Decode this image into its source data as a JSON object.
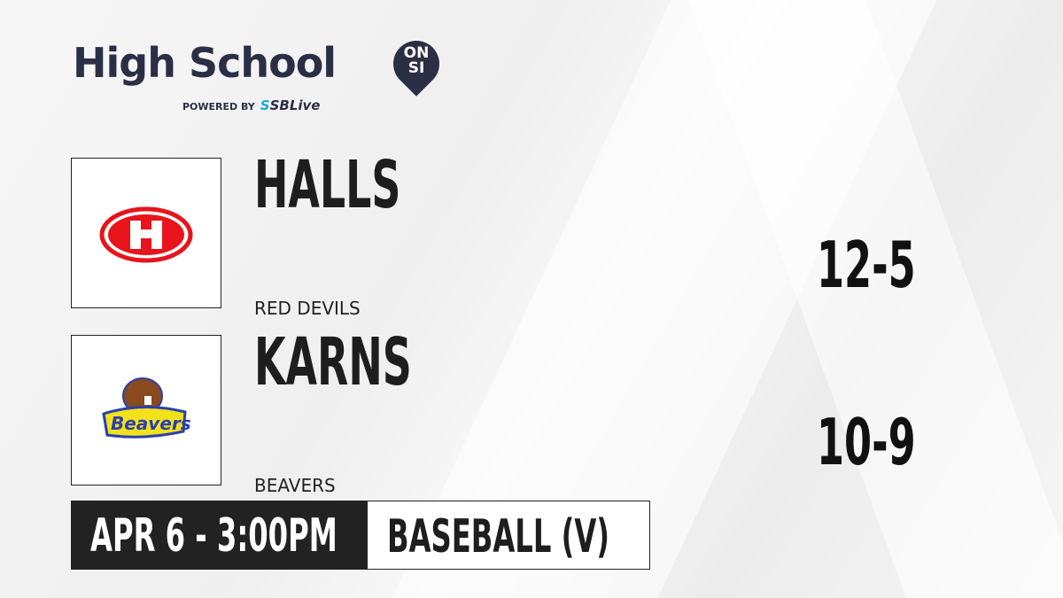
{
  "brand": {
    "title": "High School",
    "badge_line1": "ON",
    "badge_line2": "SI",
    "powered_by": "POWERED BY",
    "partner": "SBLive"
  },
  "teams": [
    {
      "name": "HALLS",
      "mascot": "RED DEVILS",
      "score": "12-5",
      "logo": "red-h-oval-logo",
      "color": "#e8141b"
    },
    {
      "name": "KARNS",
      "mascot": "BEAVERS",
      "score": "10-9",
      "logo": "beavers-logo",
      "color": "#f2e21a"
    }
  ],
  "game": {
    "datetime": "APR 6 - 3:00PM",
    "sport": "BASEBALL (V)"
  }
}
